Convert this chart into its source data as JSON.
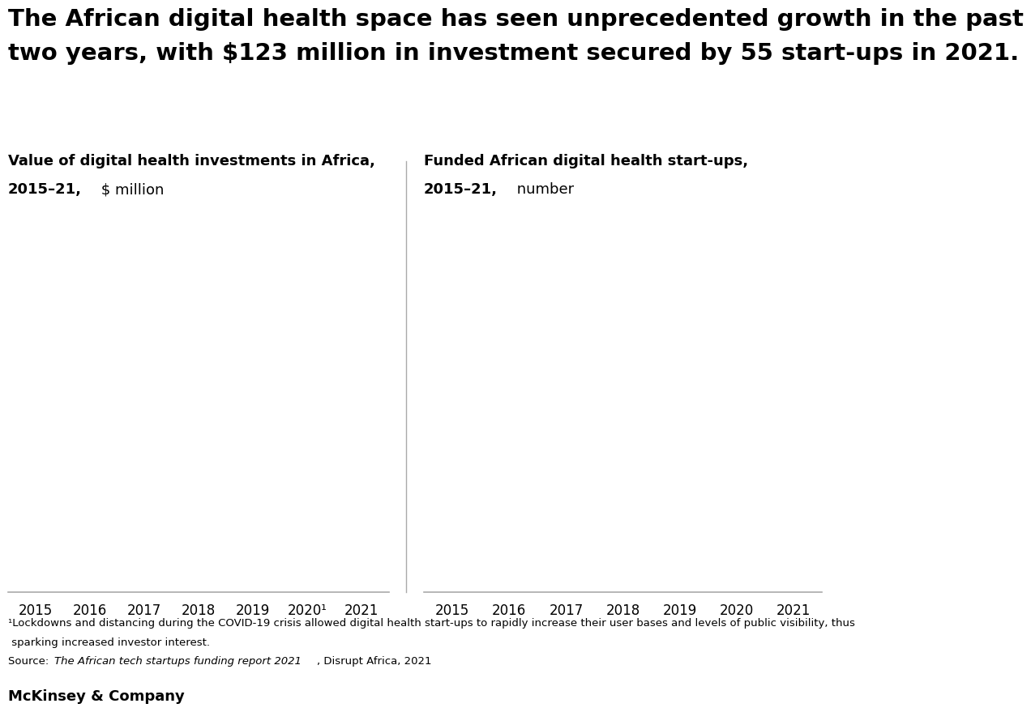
{
  "title_line1": "The African digital health space has seen unprecedented growth in the past",
  "title_line2": "two years, with $123 million in investment secured by 55 start-ups in 2021.",
  "left_chart_title_bold": "Value of digital health investments in Africa,",
  "left_chart_title_bold2": "2015–21,",
  "left_chart_title_light": " $ million",
  "right_chart_title_bold": "Funded African digital health start-ups,",
  "right_chart_title_bold2": "2015–21,",
  "right_chart_title_light": " number",
  "left_x_labels": [
    "2015",
    "2016",
    "2017",
    "2018",
    "2019",
    "2020¹",
    "2021"
  ],
  "right_x_labels": [
    "2015",
    "2016",
    "2017",
    "2018",
    "2019",
    "2020",
    "2021"
  ],
  "footnote_line1": "¹Lockdowns and distancing during the COVID-19 crisis allowed digital health start-ups to rapidly increase their user bases and levels of public visibility, thus",
  "footnote_line2": " sparking increased investor interest.",
  "source_text_plain": "Source: ",
  "source_text_italic": "The African tech startups funding report 2021",
  "source_text_end": ", Disrupt Africa, 2021",
  "brand": "McKinsey & Company",
  "bg_color": "#ffffff",
  "text_color": "#000000",
  "axis_color": "#aaaaaa",
  "divider_color": "#aaaaaa",
  "title_fontsize": 21,
  "subtitle_fontsize": 13,
  "tick_fontsize": 12,
  "footnote_fontsize": 9.5,
  "brand_fontsize": 13
}
